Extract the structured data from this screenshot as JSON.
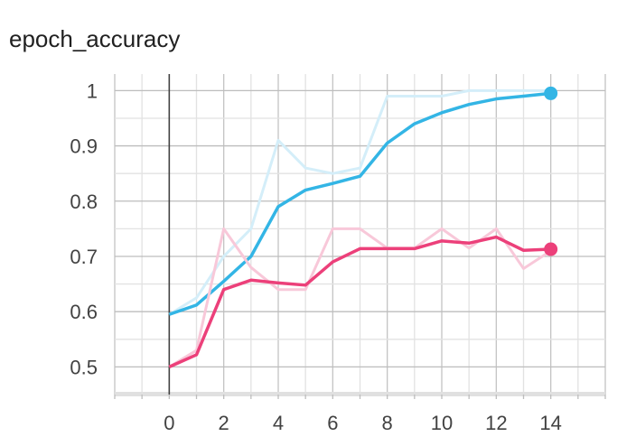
{
  "chart_data": {
    "type": "line",
    "title": "epoch_accuracy",
    "xlabel": "",
    "ylabel": "",
    "xlim": [
      -2,
      16
    ],
    "ylim": [
      0.45,
      1.03
    ],
    "x_ticks": [
      0,
      2,
      4,
      6,
      8,
      10,
      12,
      14
    ],
    "x_tick_labels": [
      "0",
      "2",
      "4",
      "6",
      "8",
      "10",
      "12",
      "14"
    ],
    "y_ticks": [
      0.5,
      0.6,
      0.7,
      0.8,
      0.9,
      1.0
    ],
    "y_tick_labels": [
      "0.5",
      "0.6",
      "0.7",
      "0.8",
      "0.9",
      "1"
    ],
    "grid": true,
    "series": [
      {
        "color": "#33b5e5",
        "raw_color": "#d4eef9",
        "x": [
          0,
          1,
          2,
          3,
          4,
          5,
          6,
          7,
          8,
          9,
          10,
          11,
          12,
          13,
          14
        ],
        "raw": [
          0.595,
          0.625,
          0.7,
          0.75,
          0.91,
          0.86,
          0.85,
          0.86,
          0.99,
          0.99,
          0.99,
          1.0,
          1.0,
          1.0,
          1.0
        ],
        "smoothed": [
          0.595,
          0.612,
          0.655,
          0.7,
          0.79,
          0.82,
          0.832,
          0.845,
          0.905,
          0.94,
          0.96,
          0.975,
          0.985,
          0.99,
          0.995
        ]
      },
      {
        "color": "#ec407a",
        "raw_color": "#f8c8d9",
        "x": [
          0,
          1,
          2,
          3,
          4,
          5,
          6,
          7,
          8,
          9,
          10,
          11,
          12,
          13,
          14
        ],
        "raw": [
          0.5,
          0.53,
          0.75,
          0.68,
          0.64,
          0.64,
          0.75,
          0.75,
          0.715,
          0.715,
          0.75,
          0.715,
          0.75,
          0.678,
          0.71
        ],
        "smoothed": [
          0.5,
          0.522,
          0.64,
          0.657,
          0.652,
          0.648,
          0.69,
          0.714,
          0.714,
          0.714,
          0.728,
          0.724,
          0.735,
          0.711,
          0.713
        ]
      }
    ]
  }
}
